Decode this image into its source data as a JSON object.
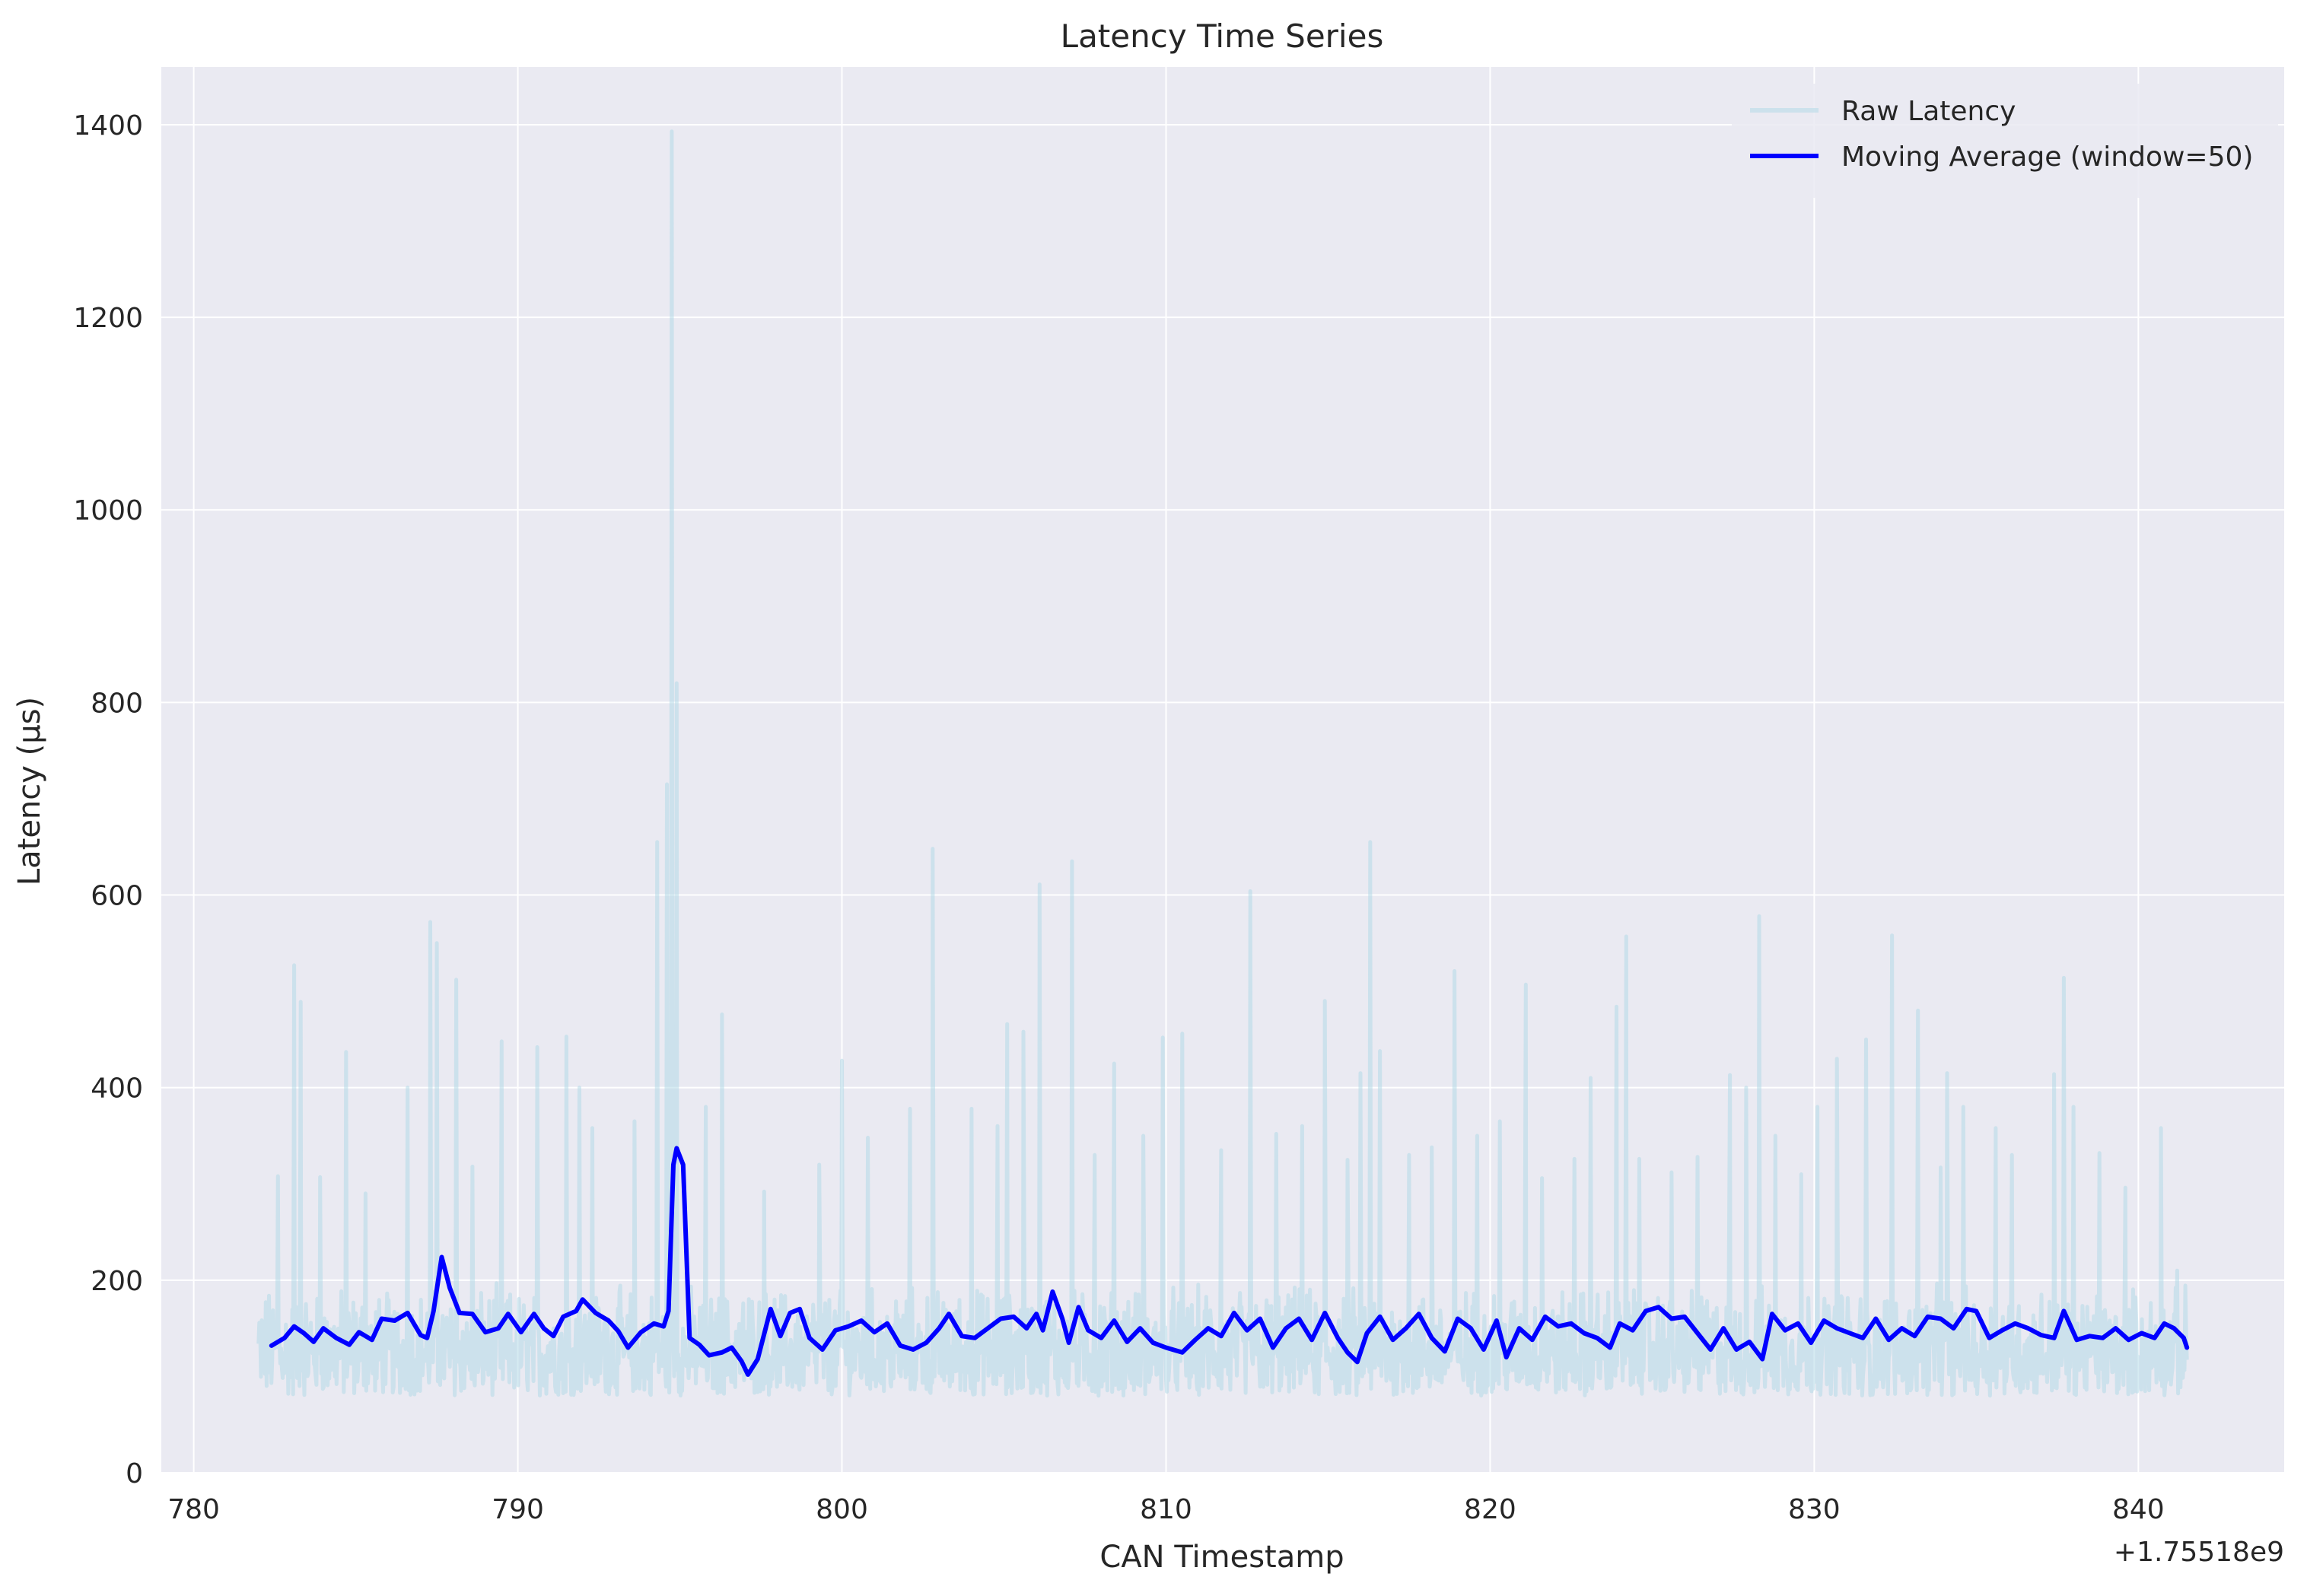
{
  "chart_data": {
    "type": "line",
    "title": "Latency Time Series",
    "xlabel": "CAN Timestamp",
    "ylabel": "Latency (µs)",
    "x_offset_label": "+1.75518e9",
    "xlim": [
      779,
      844.5
    ],
    "ylim": [
      0,
      1460
    ],
    "x_ticks": [
      780,
      790,
      800,
      810,
      820,
      830,
      840
    ],
    "y_ticks": [
      0,
      200,
      400,
      600,
      800,
      1000,
      1200,
      1400
    ],
    "grid": true,
    "legend_position": "top-right",
    "series": [
      {
        "name": "Raw Latency",
        "color": "#add8e6",
        "opacity": 0.5,
        "x_range": [
          782,
          841.5
        ],
        "typical_range": [
          80,
          200
        ],
        "spikes": [
          {
            "x": 782.6,
            "y": 308
          },
          {
            "x": 783.1,
            "y": 527
          },
          {
            "x": 783.3,
            "y": 489
          },
          {
            "x": 783.9,
            "y": 307
          },
          {
            "x": 784.7,
            "y": 437
          },
          {
            "x": 785.3,
            "y": 290
          },
          {
            "x": 786.6,
            "y": 400
          },
          {
            "x": 787.3,
            "y": 572
          },
          {
            "x": 787.5,
            "y": 550
          },
          {
            "x": 788.1,
            "y": 512
          },
          {
            "x": 788.6,
            "y": 318
          },
          {
            "x": 789.5,
            "y": 448
          },
          {
            "x": 790.6,
            "y": 442
          },
          {
            "x": 791.5,
            "y": 453
          },
          {
            "x": 791.9,
            "y": 400
          },
          {
            "x": 792.3,
            "y": 358
          },
          {
            "x": 793.6,
            "y": 365
          },
          {
            "x": 794.3,
            "y": 655
          },
          {
            "x": 794.6,
            "y": 715
          },
          {
            "x": 794.75,
            "y": 1393
          },
          {
            "x": 794.9,
            "y": 820
          },
          {
            "x": 795.8,
            "y": 380
          },
          {
            "x": 796.3,
            "y": 476
          },
          {
            "x": 797.6,
            "y": 292
          },
          {
            "x": 799.3,
            "y": 320
          },
          {
            "x": 800.0,
            "y": 428
          },
          {
            "x": 800.8,
            "y": 348
          },
          {
            "x": 802.1,
            "y": 378
          },
          {
            "x": 802.8,
            "y": 648
          },
          {
            "x": 804.0,
            "y": 378
          },
          {
            "x": 804.8,
            "y": 360
          },
          {
            "x": 805.1,
            "y": 466
          },
          {
            "x": 805.6,
            "y": 458
          },
          {
            "x": 806.1,
            "y": 611
          },
          {
            "x": 807.1,
            "y": 635
          },
          {
            "x": 807.8,
            "y": 330
          },
          {
            "x": 808.4,
            "y": 425
          },
          {
            "x": 809.3,
            "y": 350
          },
          {
            "x": 809.9,
            "y": 452
          },
          {
            "x": 810.5,
            "y": 456
          },
          {
            "x": 811.7,
            "y": 335
          },
          {
            "x": 812.6,
            "y": 604
          },
          {
            "x": 813.4,
            "y": 352
          },
          {
            "x": 814.2,
            "y": 360
          },
          {
            "x": 814.9,
            "y": 490
          },
          {
            "x": 815.6,
            "y": 325
          },
          {
            "x": 816.0,
            "y": 415
          },
          {
            "x": 816.3,
            "y": 655
          },
          {
            "x": 816.6,
            "y": 438
          },
          {
            "x": 817.5,
            "y": 330
          },
          {
            "x": 818.2,
            "y": 338
          },
          {
            "x": 818.9,
            "y": 521
          },
          {
            "x": 819.6,
            "y": 350
          },
          {
            "x": 820.3,
            "y": 365
          },
          {
            "x": 821.1,
            "y": 507
          },
          {
            "x": 821.6,
            "y": 306
          },
          {
            "x": 822.6,
            "y": 326
          },
          {
            "x": 823.1,
            "y": 410
          },
          {
            "x": 823.9,
            "y": 484
          },
          {
            "x": 824.2,
            "y": 557
          },
          {
            "x": 824.6,
            "y": 326
          },
          {
            "x": 825.6,
            "y": 312
          },
          {
            "x": 826.4,
            "y": 328
          },
          {
            "x": 827.4,
            "y": 413
          },
          {
            "x": 827.9,
            "y": 400
          },
          {
            "x": 828.3,
            "y": 578
          },
          {
            "x": 828.8,
            "y": 350
          },
          {
            "x": 829.6,
            "y": 310
          },
          {
            "x": 830.1,
            "y": 380
          },
          {
            "x": 830.7,
            "y": 430
          },
          {
            "x": 831.6,
            "y": 450
          },
          {
            "x": 832.4,
            "y": 558
          },
          {
            "x": 833.2,
            "y": 480
          },
          {
            "x": 833.9,
            "y": 317
          },
          {
            "x": 834.1,
            "y": 415
          },
          {
            "x": 834.6,
            "y": 380
          },
          {
            "x": 835.6,
            "y": 358
          },
          {
            "x": 836.1,
            "y": 330
          },
          {
            "x": 837.4,
            "y": 414
          },
          {
            "x": 837.7,
            "y": 514
          },
          {
            "x": 838.0,
            "y": 380
          },
          {
            "x": 838.8,
            "y": 332
          },
          {
            "x": 839.6,
            "y": 296
          },
          {
            "x": 840.7,
            "y": 358
          },
          {
            "x": 841.2,
            "y": 210
          }
        ]
      },
      {
        "name": "Moving Average (window=50)",
        "color": "#0000ff",
        "x_range": [
          782.4,
          841.5
        ],
        "points": [
          [
            782.4,
            132
          ],
          [
            782.8,
            140
          ],
          [
            783.1,
            152
          ],
          [
            783.4,
            145
          ],
          [
            783.7,
            136
          ],
          [
            784.0,
            150
          ],
          [
            784.4,
            140
          ],
          [
            784.8,
            133
          ],
          [
            785.1,
            146
          ],
          [
            785.5,
            138
          ],
          [
            785.8,
            160
          ],
          [
            786.2,
            158
          ],
          [
            786.6,
            166
          ],
          [
            787.0,
            143
          ],
          [
            787.2,
            140
          ],
          [
            787.4,
            168
          ],
          [
            787.65,
            224
          ],
          [
            787.9,
            192
          ],
          [
            788.2,
            166
          ],
          [
            788.6,
            165
          ],
          [
            789.0,
            146
          ],
          [
            789.4,
            150
          ],
          [
            789.7,
            165
          ],
          [
            790.1,
            146
          ],
          [
            790.5,
            165
          ],
          [
            790.8,
            150
          ],
          [
            791.1,
            142
          ],
          [
            791.4,
            162
          ],
          [
            791.8,
            168
          ],
          [
            792.0,
            180
          ],
          [
            792.4,
            166
          ],
          [
            792.8,
            158
          ],
          [
            793.1,
            147
          ],
          [
            793.4,
            130
          ],
          [
            793.8,
            146
          ],
          [
            794.2,
            155
          ],
          [
            794.5,
            152
          ],
          [
            794.65,
            168
          ],
          [
            794.8,
            320
          ],
          [
            794.9,
            337
          ],
          [
            795.1,
            320
          ],
          [
            795.3,
            140
          ],
          [
            795.6,
            133
          ],
          [
            795.9,
            122
          ],
          [
            796.3,
            125
          ],
          [
            796.6,
            130
          ],
          [
            796.9,
            116
          ],
          [
            797.1,
            102
          ],
          [
            797.4,
            118
          ],
          [
            797.8,
            170
          ],
          [
            798.1,
            142
          ],
          [
            798.4,
            166
          ],
          [
            798.7,
            170
          ],
          [
            799.0,
            140
          ],
          [
            799.4,
            128
          ],
          [
            799.8,
            148
          ],
          [
            800.2,
            152
          ],
          [
            800.6,
            158
          ],
          [
            801.0,
            146
          ],
          [
            801.4,
            155
          ],
          [
            801.8,
            132
          ],
          [
            802.2,
            128
          ],
          [
            802.6,
            135
          ],
          [
            803.0,
            150
          ],
          [
            803.3,
            165
          ],
          [
            803.7,
            142
          ],
          [
            804.1,
            140
          ],
          [
            804.5,
            150
          ],
          [
            804.9,
            160
          ],
          [
            805.3,
            162
          ],
          [
            805.7,
            150
          ],
          [
            806.0,
            165
          ],
          [
            806.2,
            148
          ],
          [
            806.5,
            188
          ],
          [
            806.8,
            160
          ],
          [
            807.0,
            135
          ],
          [
            807.3,
            172
          ],
          [
            807.6,
            148
          ],
          [
            808.0,
            140
          ],
          [
            808.4,
            158
          ],
          [
            808.8,
            136
          ],
          [
            809.2,
            150
          ],
          [
            809.6,
            135
          ],
          [
            810.0,
            130
          ],
          [
            810.5,
            125
          ],
          [
            810.9,
            138
          ],
          [
            811.3,
            150
          ],
          [
            811.7,
            142
          ],
          [
            812.1,
            166
          ],
          [
            812.5,
            148
          ],
          [
            812.9,
            160
          ],
          [
            813.3,
            130
          ],
          [
            813.7,
            150
          ],
          [
            814.1,
            160
          ],
          [
            814.5,
            138
          ],
          [
            814.9,
            166
          ],
          [
            815.3,
            140
          ],
          [
            815.6,
            125
          ],
          [
            815.9,
            115
          ],
          [
            816.2,
            145
          ],
          [
            816.6,
            162
          ],
          [
            817.0,
            138
          ],
          [
            817.4,
            150
          ],
          [
            817.8,
            165
          ],
          [
            818.2,
            140
          ],
          [
            818.6,
            126
          ],
          [
            819.0,
            160
          ],
          [
            819.4,
            150
          ],
          [
            819.8,
            128
          ],
          [
            820.2,
            158
          ],
          [
            820.5,
            120
          ],
          [
            820.9,
            150
          ],
          [
            821.3,
            138
          ],
          [
            821.7,
            162
          ],
          [
            822.1,
            152
          ],
          [
            822.5,
            155
          ],
          [
            822.9,
            145
          ],
          [
            823.3,
            140
          ],
          [
            823.7,
            130
          ],
          [
            824.0,
            155
          ],
          [
            824.4,
            148
          ],
          [
            824.8,
            168
          ],
          [
            825.2,
            172
          ],
          [
            825.6,
            160
          ],
          [
            826.0,
            162
          ],
          [
            826.4,
            145
          ],
          [
            826.8,
            128
          ],
          [
            827.2,
            150
          ],
          [
            827.6,
            128
          ],
          [
            828.0,
            136
          ],
          [
            828.4,
            118
          ],
          [
            828.7,
            165
          ],
          [
            829.1,
            148
          ],
          [
            829.5,
            155
          ],
          [
            829.9,
            135
          ],
          [
            830.3,
            158
          ],
          [
            830.7,
            150
          ],
          [
            831.1,
            145
          ],
          [
            831.5,
            140
          ],
          [
            831.9,
            160
          ],
          [
            832.3,
            138
          ],
          [
            832.7,
            150
          ],
          [
            833.1,
            142
          ],
          [
            833.5,
            162
          ],
          [
            833.9,
            160
          ],
          [
            834.3,
            150
          ],
          [
            834.7,
            170
          ],
          [
            835.0,
            168
          ],
          [
            835.4,
            140
          ],
          [
            835.8,
            148
          ],
          [
            836.2,
            155
          ],
          [
            836.6,
            150
          ],
          [
            837.0,
            143
          ],
          [
            837.4,
            140
          ],
          [
            837.7,
            168
          ],
          [
            838.1,
            138
          ],
          [
            838.5,
            142
          ],
          [
            838.9,
            140
          ],
          [
            839.3,
            150
          ],
          [
            839.7,
            138
          ],
          [
            840.1,
            145
          ],
          [
            840.5,
            140
          ],
          [
            840.8,
            155
          ],
          [
            841.1,
            150
          ],
          [
            841.4,
            140
          ],
          [
            841.5,
            130
          ]
        ]
      }
    ]
  }
}
